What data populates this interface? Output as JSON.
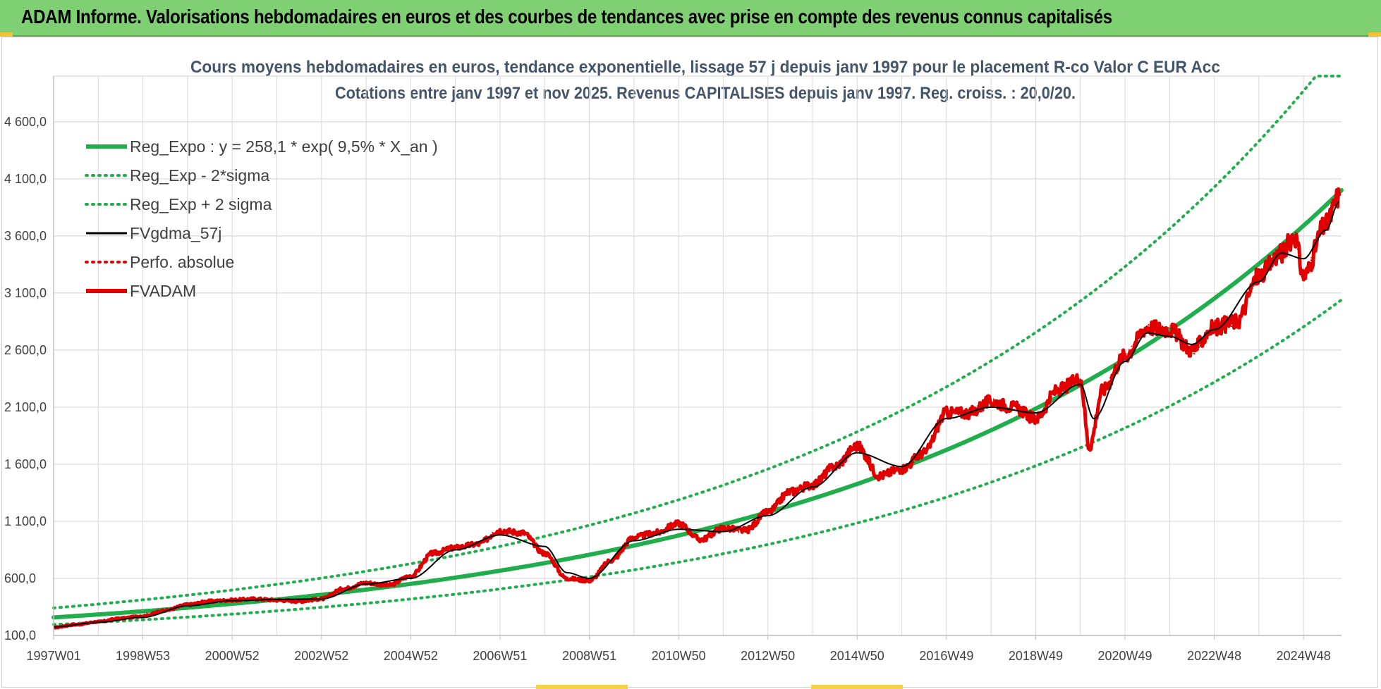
{
  "header": {
    "title": "ADAM Informe. Valorisations hebdomadaires en euros et des courbes de tendances avec prise en compte des revenus connus capitalisés"
  },
  "colors": {
    "banner": "#7fcf73",
    "reg_expo": "#1fae4b",
    "sigma": "#1fae4b",
    "fvgdma": "#000000",
    "perfo": "#e00000",
    "fvadam": "#e00000",
    "grid": "#d9d9d9",
    "title": "#44546a"
  },
  "chart_data": {
    "type": "line",
    "title": "Cours moyens hebdomadaires en euros, tendance exponentielle, lissage 57 j depuis janv 1997 pour le placement R-co Valor C EUR Acc",
    "subtitle": "Cotations entre janv 1997 et nov 2025. Revenus CAPITALISES depuis janv 1997. Reg. croiss. : 20,0/20.",
    "xlabel": "",
    "ylabel": "",
    "x_range": [
      1997.0,
      2025.85
    ],
    "ylim": [
      100,
      5000
    ],
    "x_tick_labels": [
      "1997W01",
      "1998W53",
      "2000W52",
      "2002W52",
      "2004W52",
      "2006W51",
      "2008W51",
      "2010W50",
      "2012W50",
      "2014W50",
      "2016W49",
      "2018W49",
      "2020W49",
      "2022W48",
      "2024W48"
    ],
    "x_tick_years": [
      1997.0,
      1999.0,
      2001.0,
      2003.0,
      2005.0,
      2007.0,
      2009.0,
      2011.0,
      2013.0,
      2015.0,
      2017.0,
      2019.0,
      2021.0,
      2023.0,
      2025.0
    ],
    "y_ticks": [
      100,
      600,
      1100,
      1600,
      2100,
      2600,
      3100,
      3600,
      4100,
      4600
    ],
    "y_tick_labels": [
      "100,0",
      "600,0",
      "1 100,0",
      "1 600,0",
      "2 100,0",
      "2 600,0",
      "3 100,0",
      "3 600,0",
      "4 100,0",
      "4 600,0"
    ],
    "grid": true,
    "legend_position": "top-left",
    "legend": [
      {
        "name": "Reg_Expo : y = 258,1 * exp( 9,5% *  X_an )",
        "style": "solid-thick",
        "color": "#1fae4b"
      },
      {
        "name": "Reg_Exp - 2*sigma",
        "style": "dotted",
        "color": "#1fae4b"
      },
      {
        "name": "Reg_Exp + 2 sigma",
        "style": "dotted",
        "color": "#1fae4b"
      },
      {
        "name": "FVgdma_57j",
        "style": "solid",
        "color": "#000000"
      },
      {
        "name": "Perfo. absolue",
        "style": "dotted",
        "color": "#e00000"
      },
      {
        "name": "FVADAM",
        "style": "solid-thick",
        "color": "#e00000"
      }
    ],
    "regression": {
      "a": 258.1,
      "rate": 0.095,
      "lower_factor": 0.76,
      "upper_factor": 1.32,
      "cap": 5000
    },
    "series": [
      {
        "name": "FVADAM",
        "x": [
          1997.0,
          1997.5,
          1998.0,
          1998.5,
          1999.0,
          1999.5,
          2000.0,
          2000.5,
          2001.0,
          2001.5,
          2002.0,
          2002.5,
          2003.0,
          2003.5,
          2004.0,
          2004.5,
          2005.0,
          2005.5,
          2006.0,
          2006.5,
          2007.0,
          2007.5,
          2008.0,
          2008.5,
          2009.0,
          2009.5,
          2010.0,
          2010.5,
          2011.0,
          2011.5,
          2012.0,
          2012.5,
          2013.0,
          2013.5,
          2014.0,
          2014.5,
          2015.0,
          2015.5,
          2016.0,
          2016.5,
          2017.0,
          2017.5,
          2018.0,
          2018.5,
          2019.0,
          2019.5,
          2020.0,
          2020.2,
          2020.5,
          2021.0,
          2021.5,
          2022.0,
          2022.5,
          2023.0,
          2023.5,
          2024.0,
          2024.5,
          2024.8,
          2025.0,
          2025.5,
          2025.8
        ],
        "values": [
          170,
          195,
          220,
          250,
          270,
          320,
          370,
          400,
          410,
          420,
          410,
          400,
          420,
          510,
          560,
          540,
          620,
          820,
          870,
          900,
          1020,
          1000,
          820,
          600,
          580,
          760,
          960,
          1000,
          1080,
          940,
          1040,
          1020,
          1180,
          1360,
          1420,
          1580,
          1760,
          1500,
          1560,
          1700,
          2050,
          2050,
          2150,
          2100,
          2000,
          2250,
          2350,
          1750,
          2250,
          2550,
          2800,
          2780,
          2600,
          2800,
          2850,
          3250,
          3450,
          3600,
          3250,
          3700,
          3950
        ]
      },
      {
        "name": "FVgdma_57j",
        "x": [
          1997.0,
          1998.0,
          1999.0,
          2000.0,
          2001.0,
          2002.0,
          2003.0,
          2004.0,
          2005.0,
          2006.0,
          2007.0,
          2008.0,
          2008.5,
          2009.0,
          2010.0,
          2011.0,
          2012.0,
          2013.0,
          2014.0,
          2015.0,
          2016.0,
          2017.0,
          2018.0,
          2019.0,
          2020.0,
          2020.3,
          2021.0,
          2021.5,
          2022.0,
          2022.5,
          2023.0,
          2024.0,
          2024.5,
          2025.0,
          2025.5,
          2025.8
        ],
        "values": [
          175,
          215,
          260,
          360,
          405,
          415,
          420,
          550,
          600,
          850,
          980,
          880,
          650,
          600,
          930,
          1030,
          1010,
          1150,
          1400,
          1700,
          1580,
          2000,
          2100,
          2050,
          2300,
          2000,
          2500,
          2750,
          2720,
          2650,
          2780,
          3200,
          3450,
          3400,
          3650,
          3900
        ]
      }
    ]
  }
}
